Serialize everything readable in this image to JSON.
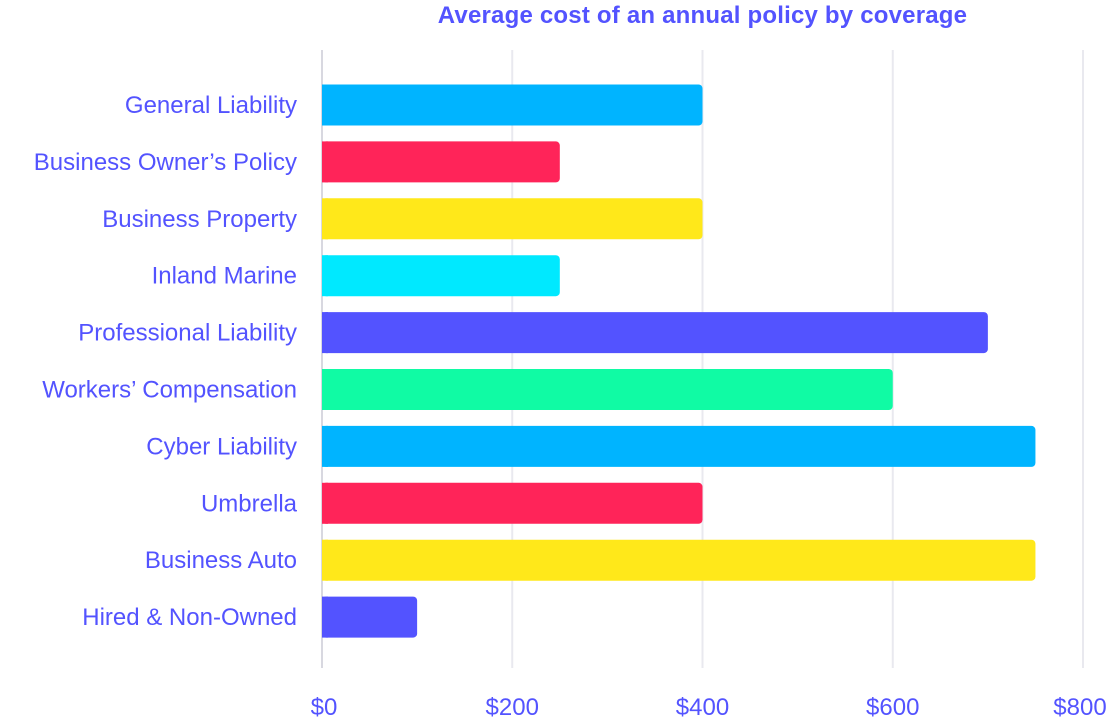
{
  "theme": {
    "text_color": "#5353ff",
    "grid_color": "#e9e9ef",
    "axis_color": "#d8d8e0"
  },
  "chart_data": {
    "type": "bar",
    "orientation": "horizontal",
    "title": "Average cost of an annual policy by coverage",
    "xlabel": "",
    "ylabel": "",
    "categories": [
      "General Liability",
      "Business Owner’s Policy",
      "Business Property",
      "Inland Marine",
      "Professional Liability",
      "Workers’ Compensation",
      "Cyber Liability",
      "Umbrella",
      "Business Auto",
      "Hired & Non-Owned"
    ],
    "values": [
      400,
      250,
      400,
      250,
      700,
      600,
      750,
      400,
      750,
      100
    ],
    "colors": [
      "#00b4ff",
      "#ff2459",
      "#ffe81a",
      "#00e9ff",
      "#5353ff",
      "#10fba4",
      "#00b4ff",
      "#ff2459",
      "#ffe81a",
      "#5353ff"
    ],
    "xlim": [
      0,
      800
    ],
    "x_ticks": [
      0,
      200,
      400,
      600,
      800
    ],
    "x_tick_labels": [
      "$0",
      "$200",
      "$400",
      "$600",
      "$800"
    ],
    "grid": true,
    "legend": "none"
  }
}
